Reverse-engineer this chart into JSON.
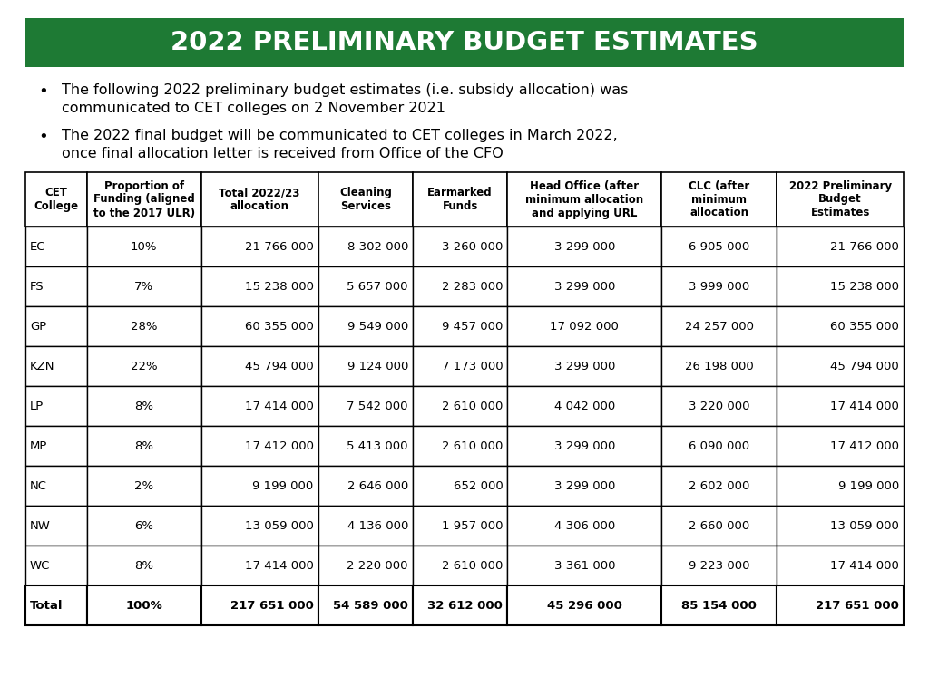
{
  "title": "2022 PRELIMINARY BUDGET ESTIMATES",
  "title_bg_color": "#1e7a34",
  "title_text_color": "#ffffff",
  "bullet1_line1": "The following 2022 preliminary budget estimates (i.e. subsidy allocation) was",
  "bullet1_line2": "communicated to CET colleges on 2 November 2021",
  "bullet2_line1": "The 2022 final budget will be communicated to CET colleges in March 2022,",
  "bullet2_line2": "once final allocation letter is received from Office of the CFO",
  "col_headers": [
    "CET\nCollege",
    "Proportion of\nFunding (aligned\nto the 2017 ULR)",
    "Total 2022/23\nallocation",
    "Cleaning\nServices",
    "Earmarked\nFunds",
    "Head Office (after\nminimum allocation\nand applying URL",
    "CLC (after\nminimum\nallocation",
    "2022 Preliminary\nBudget\nEstimates"
  ],
  "rows": [
    [
      "EC",
      "10%",
      "21 766 000",
      "8 302 000",
      "3 260 000",
      "3 299 000",
      "6 905 000",
      "21 766 000"
    ],
    [
      "FS",
      "7%",
      "15 238 000",
      "5 657 000",
      "2 283 000",
      "3 299 000",
      "3 999 000",
      "15 238 000"
    ],
    [
      "GP",
      "28%",
      "60 355 000",
      "9 549 000",
      "9 457 000",
      "17 092 000",
      "24 257 000",
      "60 355 000"
    ],
    [
      "KZN",
      "22%",
      "45 794 000",
      "9 124 000",
      "7 173 000",
      "3 299 000",
      "26 198 000",
      "45 794 000"
    ],
    [
      "LP",
      "8%",
      "17 414 000",
      "7 542 000",
      "2 610 000",
      "4 042 000",
      "3 220 000",
      "17 414 000"
    ],
    [
      "MP",
      "8%",
      "17 412 000",
      "5 413 000",
      "2 610 000",
      "3 299 000",
      "6 090 000",
      "17 412 000"
    ],
    [
      "NC",
      "2%",
      "9 199 000",
      "2 646 000",
      "652 000",
      "3 299 000",
      "2 602 000",
      "9 199 000"
    ],
    [
      "NW",
      "6%",
      "13 059 000",
      "4 136 000",
      "1 957 000",
      "4 306 000",
      "2 660 000",
      "13 059 000"
    ],
    [
      "WC",
      "8%",
      "17 414 000",
      "2 220 000",
      "2 610 000",
      "3 361 000",
      "9 223 000",
      "17 414 000"
    ]
  ],
  "total_row": [
    "Total",
    "100%",
    "217 651 000",
    "54 589 000",
    "32 612 000",
    "45 296 000",
    "85 154 000",
    "217 651 000"
  ],
  "col_aligns": [
    "left",
    "center",
    "right",
    "right",
    "right",
    "center",
    "center",
    "right"
  ],
  "bg_color": "#ffffff"
}
